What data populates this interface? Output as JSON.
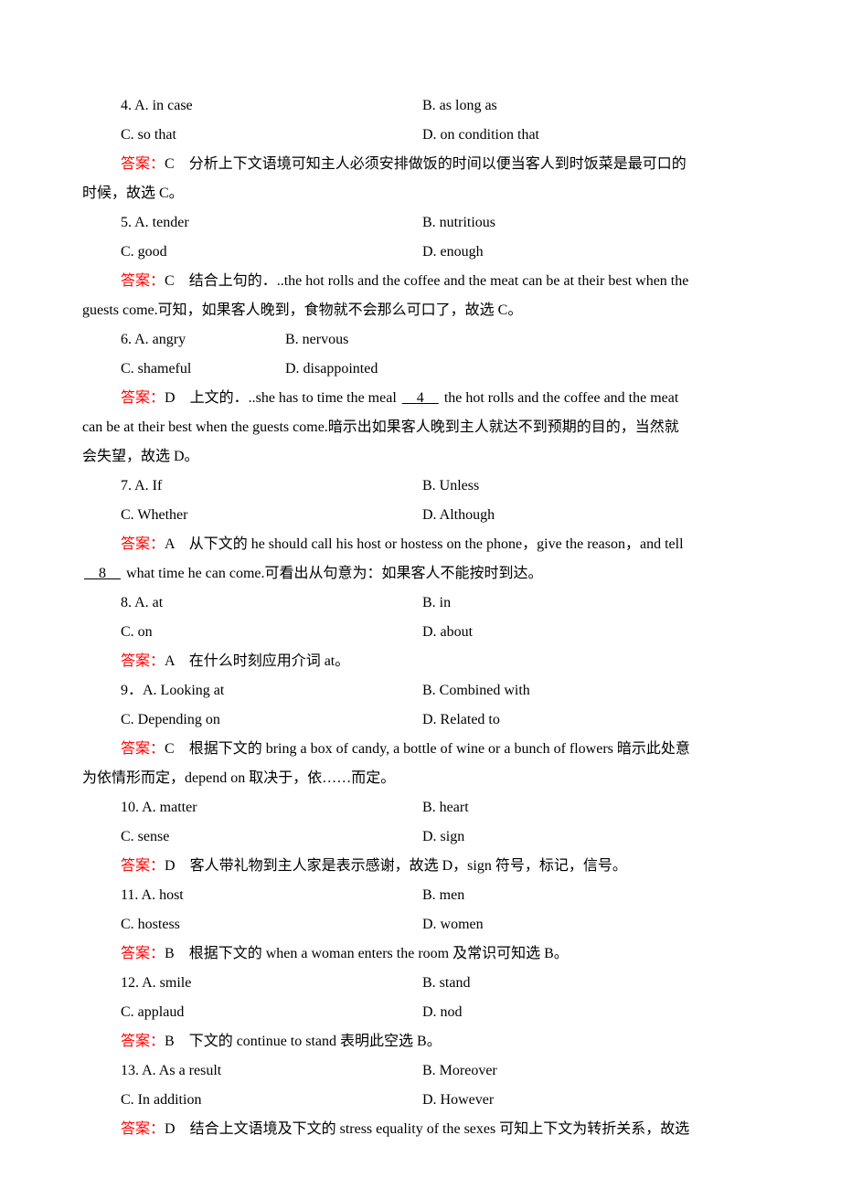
{
  "questions": [
    {
      "number": "4",
      "options": {
        "A": "in case",
        "B": "as long as",
        "C": "so that",
        "D": "on condition that"
      },
      "answer_letter": "C",
      "explanation_text": "分析上下文语境可知主人必须安排做饭的时间以便当客人到时饭菜是最可口的时候，故选 C。"
    },
    {
      "number": "5",
      "options": {
        "A": "tender",
        "B": "nutritious",
        "C": "good",
        "D": "enough"
      },
      "answer_letter": "C",
      "explanation_text": "结合上句的．..the hot rolls and the coffee and the meat can be at their best when the guests come.可知，如果客人晚到，食物就不会那么可口了，故选 C。"
    },
    {
      "number": "6",
      "options": {
        "A": "angry",
        "B": "nervous",
        "C": "shameful",
        "D": "disappointed"
      },
      "answer_letter": "D",
      "explanation_text_before_blank": "上文的．..she has to time the meal ",
      "blank_number": "4",
      "explanation_text_after_blank": " the hot rolls and the coffee and the meat can be at their best when the guests come.暗示出如果客人晚到主人就达不到预期的目的，当然就会失望，故选 D。",
      "narrow": true
    },
    {
      "number": "7",
      "options": {
        "A": "If",
        "B": "Unless",
        "C": "Whether",
        "D": "Although"
      },
      "answer_letter": "A",
      "explanation_text_before_blank": "从下文的 he should call his host or hostess on the phone，give the reason，and tell ",
      "blank_number": "8",
      "explanation_text_after_blank": " what time he can come.可看出从句意为：如果客人不能按时到达。",
      "blank_on_new_line": true
    },
    {
      "number": "8",
      "options": {
        "A": "at",
        "B": "in",
        "C": "on",
        "D": "about"
      },
      "answer_letter": "A",
      "explanation_text": "在什么时刻应用介词 at。"
    },
    {
      "number": "9",
      "options": {
        "A": "Looking at",
        "B": "Combined with",
        "C": "Depending on",
        "D": "Related to"
      },
      "answer_letter": "C",
      "explanation_text": "根据下文的 bring a box of candy, a bottle of wine or a bunch of flowers 暗示此处意为依情形而定，depend on 取决于，依……而定。",
      "period_punct": "．"
    },
    {
      "number": "10",
      "options": {
        "A": "matter",
        "B": "heart",
        "C": "sense",
        "D": "sign"
      },
      "answer_letter": "D",
      "explanation_text": "客人带礼物到主人家是表示感谢，故选 D，sign 符号，标记，信号。"
    },
    {
      "number": "11",
      "options": {
        "A": "host",
        "B": "men",
        "C": "hostess",
        "D": "women"
      },
      "answer_letter": "B",
      "explanation_text": "根据下文的 when a woman enters the room 及常识可知选 B。"
    },
    {
      "number": "12",
      "options": {
        "A": "smile",
        "B": "stand",
        "C": "applaud",
        "D": "nod"
      },
      "answer_letter": "B",
      "explanation_text": "下文的 continue to stand 表明此空选 B。"
    },
    {
      "number": "13",
      "options": {
        "A": "As a result",
        "B": "Moreover",
        "C": "In addition",
        "D": "However"
      },
      "answer_letter": "D",
      "explanation_text": "结合上文语境及下文的 stress equality of the sexes 可知上下文为转折关系，故选"
    }
  ],
  "answer_label": "答案："
}
